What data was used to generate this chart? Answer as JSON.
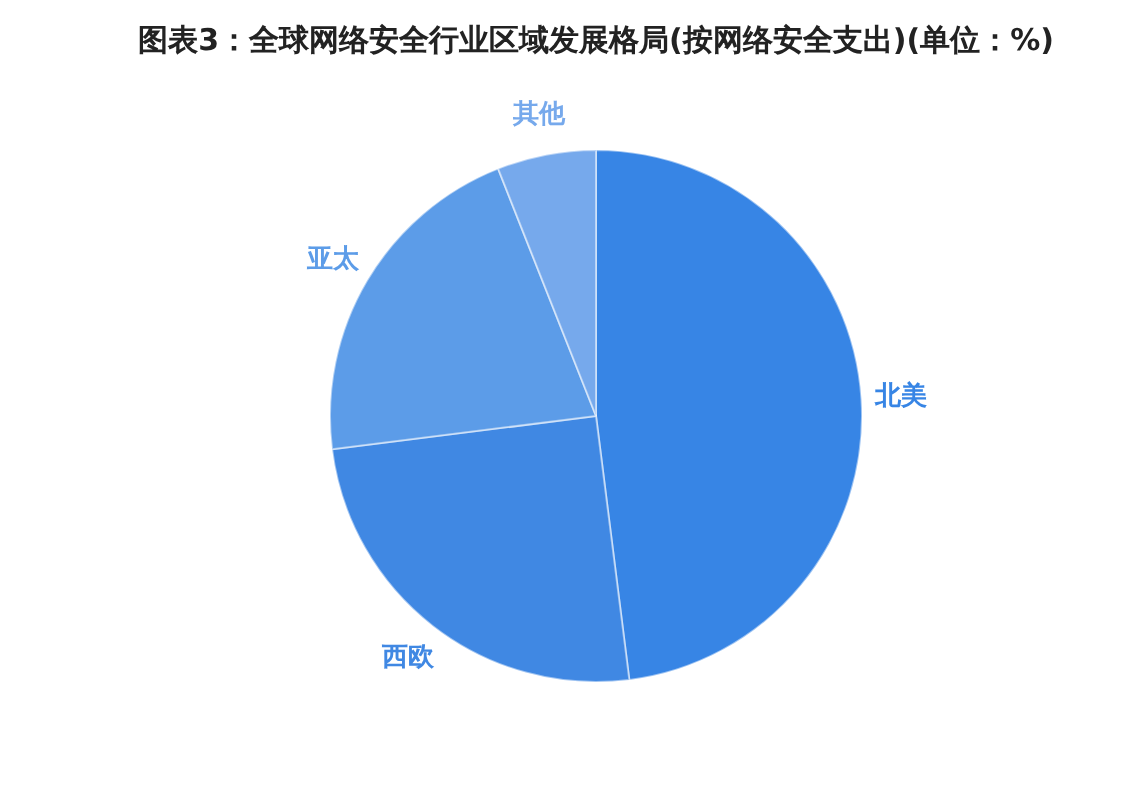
{
  "chart_data": {
    "type": "pie",
    "title": "图表3：全球网络安全行业区域发展格局(按网络安全支出)(单位：%)",
    "categories": [
      "北美",
      "西欧",
      "亚太",
      "其他"
    ],
    "values": [
      48,
      25,
      21,
      6
    ],
    "colors": [
      "#3785e5",
      "#4088e3",
      "#5c9ce8",
      "#76a9ec"
    ]
  }
}
